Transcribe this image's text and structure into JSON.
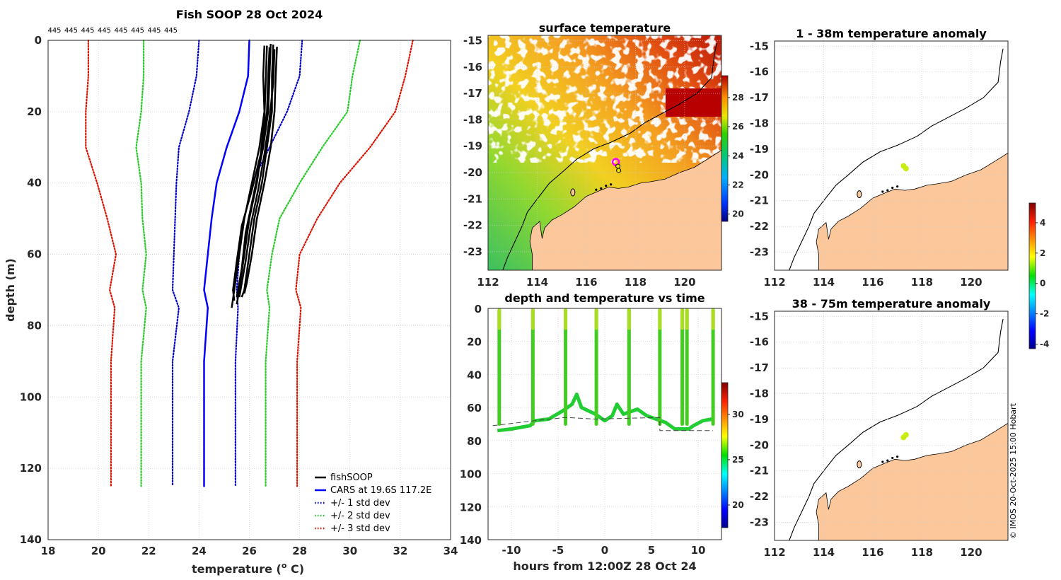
{
  "colors": {
    "soop": "#000000",
    "cars": "#0000ff",
    "std1": "#0000cc",
    "std2": "#22cc22",
    "std3": "#dd1100",
    "land": "#fcc89b",
    "axis": "#262626",
    "grid": "#cccccc",
    "sst_marker": "#ff00ff"
  },
  "copyright": "© IMOS 20-Oct-2025 15:00 Hobart",
  "chart_data": [
    {
      "id": "profile",
      "type": "line",
      "title": "Fish SOOP 28 Oct 2024",
      "xlabel": "temperature (",
      "xlabel_sup": "o",
      "xlabel_tail": " C)",
      "ylabel": "depth (m)",
      "xlim": [
        18,
        34
      ],
      "ylim": [
        140,
        0
      ],
      "xticks": [
        "18",
        "20",
        "22",
        "24",
        "26",
        "28",
        "30",
        "32",
        "34"
      ],
      "yticks": [
        "0",
        "20",
        "40",
        "60",
        "80",
        "100",
        "120",
        "140"
      ],
      "top_labels": [
        "445",
        "445",
        "445",
        "445",
        "445",
        "445",
        "445",
        "445"
      ],
      "depth": [
        0,
        10,
        20,
        30,
        40,
        50,
        60,
        70,
        75,
        90,
        125
      ],
      "series": [
        {
          "name": "CARS at 19.6S 117.2E",
          "style": "solid",
          "temp": [
            26.0,
            25.95,
            25.6,
            25.1,
            24.7,
            24.5,
            24.35,
            24.2,
            24.35,
            24.2,
            24.2
          ]
        },
        {
          "name": "+/- 1 std dev",
          "style": "dotted",
          "temp": [
            [
              24.0,
              23.9,
              23.6,
              23.2,
              23.1,
              23.05,
              23.0,
              22.95,
              23.2,
              22.95,
              22.95
            ],
            [
              28.1,
              28.0,
              27.5,
              26.8,
              26.1,
              25.8,
              25.6,
              25.5,
              25.55,
              25.45,
              25.45
            ]
          ]
        },
        {
          "name": "+/- 2 std dev",
          "style": "dotted",
          "temp": [
            [
              21.8,
              21.8,
              21.7,
              21.5,
              21.7,
              21.75,
              21.9,
              21.75,
              21.9,
              21.7,
              21.7
            ],
            [
              30.4,
              30.1,
              29.9,
              28.9,
              28.0,
              27.2,
              26.9,
              26.7,
              26.8,
              26.65,
              26.65
            ]
          ]
        },
        {
          "name": "+/- 3 std dev",
          "style": "dotted",
          "temp": [
            [
              19.6,
              19.6,
              19.5,
              19.5,
              19.95,
              20.35,
              20.7,
              20.45,
              20.65,
              20.5,
              20.5
            ],
            [
              32.5,
              32.2,
              31.8,
              30.8,
              29.6,
              28.7,
              28.0,
              27.85,
              28.05,
              27.9,
              27.9
            ]
          ]
        }
      ],
      "soop_casts": [
        {
          "depth": [
            1.5,
            10,
            20,
            30,
            40,
            50,
            60,
            70,
            75
          ],
          "temp": [
            26.6,
            26.55,
            26.6,
            26.4,
            26.1,
            25.8,
            25.6,
            25.4,
            25.3
          ]
        },
        {
          "depth": [
            2,
            10,
            20,
            30,
            40,
            50,
            60,
            70,
            74
          ],
          "temp": [
            26.8,
            26.75,
            26.7,
            26.5,
            26.3,
            26.0,
            25.8,
            25.6,
            25.5
          ]
        },
        {
          "depth": [
            1.2,
            10,
            20,
            30,
            40,
            50,
            60,
            70,
            72
          ],
          "temp": [
            26.95,
            26.9,
            26.9,
            26.7,
            26.5,
            26.2,
            26.0,
            25.8,
            25.7
          ]
        },
        {
          "depth": [
            1.8,
            10,
            20,
            30,
            40,
            50,
            60,
            68,
            71
          ],
          "temp": [
            27.1,
            27.05,
            27.0,
            26.85,
            26.6,
            26.3,
            26.1,
            25.9,
            25.8
          ]
        },
        {
          "depth": [
            1.5,
            12,
            22,
            32,
            42,
            52,
            62,
            70,
            73
          ],
          "temp": [
            26.7,
            26.65,
            26.6,
            26.45,
            26.1,
            25.7,
            25.5,
            25.35,
            25.4
          ]
        },
        {
          "depth": [
            2.5,
            12,
            22,
            32,
            42,
            52,
            62,
            70,
            72
          ],
          "temp": [
            27.0,
            26.95,
            26.8,
            26.6,
            26.35,
            26.05,
            25.85,
            25.65,
            25.6
          ]
        },
        {
          "depth": [
            1,
            10,
            20,
            30,
            44,
            54,
            64,
            70,
            72
          ],
          "temp": [
            26.85,
            26.8,
            26.75,
            26.55,
            26.15,
            25.85,
            25.7,
            25.55,
            25.5
          ]
        }
      ],
      "legend": [
        "fishSOOP",
        "CARS at 19.6S 117.2E",
        "+/- 1 std dev",
        "+/- 2 std dev",
        "+/- 3 std dev"
      ],
      "legend_position": "bottom-right"
    },
    {
      "id": "sst",
      "type": "heatmap",
      "title": "surface temperature",
      "xlim": [
        112,
        121.5
      ],
      "ylim": [
        -23.7,
        -14.8
      ],
      "xticks": [
        "112",
        "114",
        "116",
        "118",
        "120"
      ],
      "yticks": [
        "-15",
        "-16",
        "-17",
        "-18",
        "-19",
        "-20",
        "-21",
        "-22",
        "-23"
      ],
      "colorbar": {
        "min": 19.5,
        "max": 29.5,
        "ticks": [
          "20",
          "22",
          "24",
          "26",
          "28"
        ]
      },
      "marker": {
        "lon": 117.2,
        "lat": -19.6
      }
    },
    {
      "id": "timeseries",
      "type": "scatter",
      "title": "depth and temperature vs time",
      "xlabel": "hours from 12:00Z 28 Oct 24",
      "xlim": [
        -12.5,
        12.5
      ],
      "ylim": [
        140,
        0
      ],
      "xticks": [
        "-10",
        "-5",
        "0",
        "5",
        "10"
      ],
      "yticks": [
        "0",
        "20",
        "40",
        "60",
        "80",
        "100",
        "120",
        "140"
      ],
      "colorbar": {
        "min": 17.5,
        "max": 33.5,
        "ticks": [
          "20",
          "25",
          "30"
        ]
      },
      "cast_hours": [
        -11.3,
        -7.7,
        -4.2,
        -0.9,
        2.6,
        5.9,
        8.3,
        8.8,
        11.6
      ],
      "bottom_track": [
        [
          -11.5,
          74
        ],
        [
          -10,
          73
        ],
        [
          -8,
          71
        ],
        [
          -7.5,
          68
        ],
        [
          -6,
          67
        ],
        [
          -4.5,
          62
        ],
        [
          -3.5,
          58
        ],
        [
          -3,
          52
        ],
        [
          -2.5,
          60
        ],
        [
          -1,
          64
        ],
        [
          0,
          68
        ],
        [
          0.8,
          65
        ],
        [
          1.3,
          58
        ],
        [
          2,
          64
        ],
        [
          3.5,
          61
        ],
        [
          4.5,
          65
        ],
        [
          5.5,
          67
        ],
        [
          6.5,
          69
        ],
        [
          7.5,
          73
        ],
        [
          8.2,
          73
        ],
        [
          9,
          73
        ],
        [
          9.5,
          71
        ],
        [
          10.5,
          68
        ],
        [
          11.5,
          67
        ]
      ],
      "seabed_dash": [
        [
          -12,
          71
        ],
        [
          -7.5,
          68
        ],
        [
          -4.2,
          66
        ],
        [
          -0.9,
          67
        ],
        [
          2.6,
          66.5
        ],
        [
          5.9,
          66
        ],
        [
          5.9,
          74
        ],
        [
          11.6,
          74
        ]
      ]
    },
    {
      "id": "anom1",
      "type": "heatmap",
      "title": "1 - 38m temperature anomaly",
      "xlim": [
        112,
        121.5
      ],
      "ylim": [
        -23.7,
        -14.8
      ],
      "xticks": [
        "112",
        "114",
        "116",
        "118",
        "120"
      ],
      "yticks": [
        "-15",
        "-16",
        "-17",
        "-18",
        "-19",
        "-20",
        "-21",
        "-22",
        "-23"
      ],
      "points": [
        {
          "lon": 117.25,
          "lat": -19.65,
          "anom": 2.6
        },
        {
          "lon": 117.35,
          "lat": -19.75,
          "anom": 2.4
        }
      ]
    },
    {
      "id": "anom2",
      "type": "heatmap",
      "title": "38 - 75m temperature anomaly",
      "xlim": [
        112,
        121.5
      ],
      "ylim": [
        -23.7,
        -14.8
      ],
      "xticks": [
        "112",
        "114",
        "116",
        "118",
        "120"
      ],
      "yticks": [
        "-15",
        "-16",
        "-17",
        "-18",
        "-19",
        "-20",
        "-21",
        "-22",
        "-23"
      ],
      "points": [
        {
          "lon": 117.25,
          "lat": -19.7,
          "anom": 2.7
        },
        {
          "lon": 117.35,
          "lat": -19.6,
          "anom": 2.5
        }
      ]
    },
    {
      "id": "anomaly_colorbar",
      "type": "colorbar",
      "min": -4.3,
      "max": 5.3,
      "ticks": [
        "4",
        "2",
        "0",
        "-2",
        "-4"
      ]
    }
  ]
}
